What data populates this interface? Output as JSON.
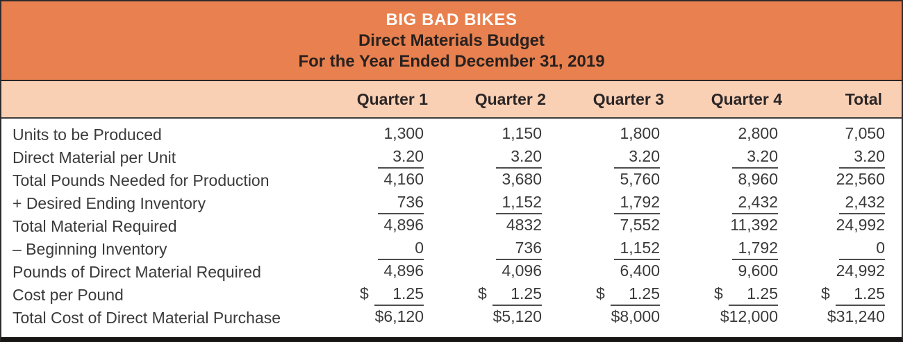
{
  "title": {
    "company": "BIG BAD BIKES",
    "report": "Direct Materials Budget",
    "period": "For the Year Ended December 31, 2019"
  },
  "columns": [
    "Quarter 1",
    "Quarter 2",
    "Quarter 3",
    "Quarter 4",
    "Total"
  ],
  "currency_symbol": "$",
  "rows": [
    {
      "label": "Units to be Produced",
      "values": [
        "1,300",
        "1,150",
        "1,800",
        "2,800",
        "7,050"
      ]
    },
    {
      "label": "Direct Material per Unit",
      "values": [
        "3.20",
        "3.20",
        "3.20",
        "3.20",
        "3.20"
      ],
      "underline": true
    },
    {
      "label": "Total Pounds Needed for Production",
      "values": [
        "4,160",
        "3,680",
        "5,760",
        "8,960",
        "22,560"
      ]
    },
    {
      "label": "+ Desired Ending Inventory",
      "values": [
        "736",
        "1,152",
        "1,792",
        "2,432",
        "2,432"
      ],
      "underline": true
    },
    {
      "label": "Total Material Required",
      "values": [
        "4,896",
        "4832",
        "7,552",
        "11,392",
        "24,992"
      ]
    },
    {
      "label": "– Beginning Inventory",
      "values": [
        "0",
        "736",
        "1,152",
        "1,792",
        "0"
      ],
      "underline": true
    },
    {
      "label": "Pounds of Direct Material Required",
      "values": [
        "4,896",
        "4,096",
        "6,400",
        "9,600",
        "24,992"
      ]
    },
    {
      "label": "Cost per Pound",
      "values": [
        "1.25",
        "1.25",
        "1.25",
        "1.25",
        "1.25"
      ],
      "underline": true,
      "dollar_prefix": true
    },
    {
      "label": "Total Cost of Direct Material Purchase",
      "values": [
        "$6,120",
        "$5,120",
        "$8,000",
        "$12,000",
        "$31,240"
      ]
    }
  ],
  "colors": {
    "header_orange": "#E8814F",
    "column_band_peach": "#FAD0B4",
    "title_text_white": "#FFFFFF",
    "body_text": "#3A3A3B",
    "rule_dark": "#4D4D4F",
    "outer_border": "#2E2B2C",
    "bottom_bar": "#181515"
  }
}
